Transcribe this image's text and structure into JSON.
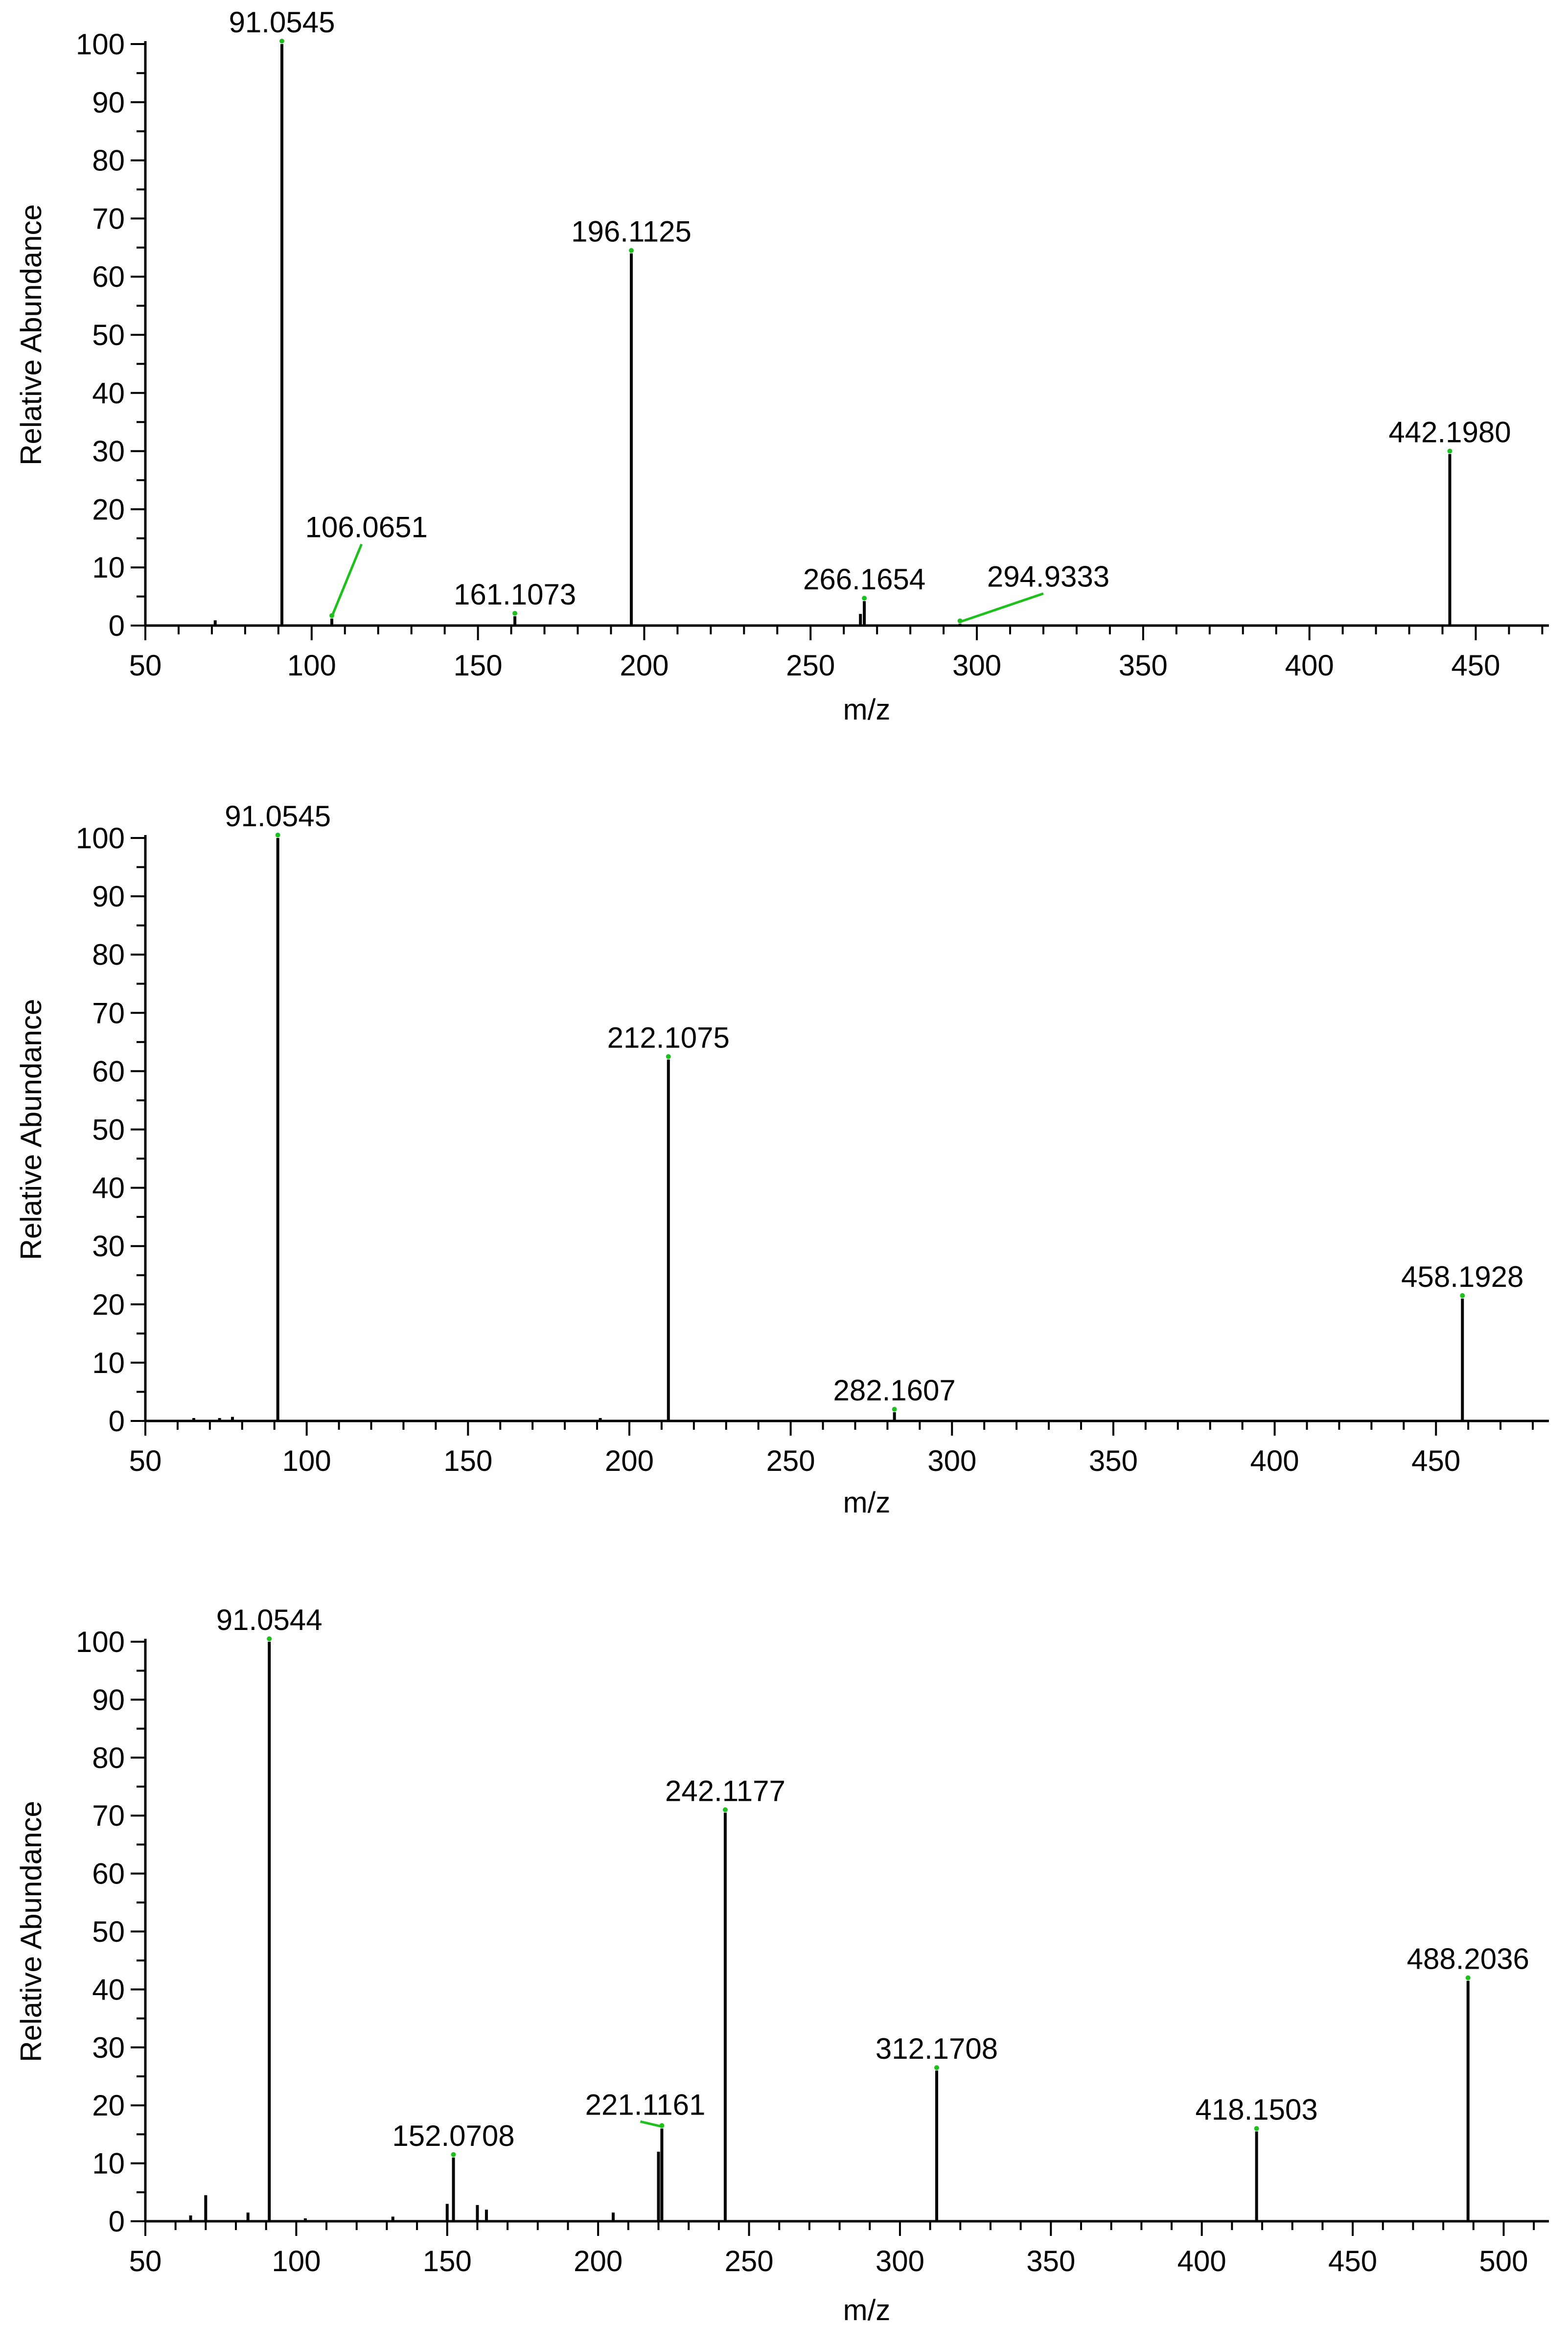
{
  "colors": {
    "peak": "#000000",
    "axis": "#000000",
    "annotation": "#1fbf1f",
    "background": "#ffffff"
  },
  "chart_data": [
    {
      "type": "bar",
      "xlabel": "m/z",
      "ylabel": "Relative Abundance",
      "xlim": [
        50,
        472
      ],
      "ylim": [
        0,
        100
      ],
      "xticks": [
        50,
        100,
        150,
        200,
        250,
        300,
        350,
        400,
        450
      ],
      "yticks": [
        0,
        10,
        20,
        30,
        40,
        50,
        60,
        70,
        80,
        90,
        100
      ],
      "peaks": [
        {
          "x": 71.0,
          "y": 0.9
        },
        {
          "x": 91.0545,
          "y": 100
        },
        {
          "x": 106.0651,
          "y": 1.2
        },
        {
          "x": 161.1073,
          "y": 1.6
        },
        {
          "x": 196.1125,
          "y": 64
        },
        {
          "x": 265.0,
          "y": 2.0
        },
        {
          "x": 266.1654,
          "y": 4.2
        },
        {
          "x": 294.9333,
          "y": 0.3
        },
        {
          "x": 442.198,
          "y": 29.5
        }
      ],
      "labels": [
        {
          "x": 91.0545,
          "y": 100,
          "text": "91.0545"
        },
        {
          "x": 106.0651,
          "y": 1.2,
          "text": "106.0651",
          "lx": 115,
          "ly": 14
        },
        {
          "x": 161.1073,
          "y": 1.6,
          "text": "161.1073"
        },
        {
          "x": 196.1125,
          "y": 64,
          "text": "196.1125"
        },
        {
          "x": 266.1654,
          "y": 4.2,
          "text": "266.1654"
        },
        {
          "x": 294.9333,
          "y": 0.3,
          "text": "294.9333",
          "lx": 320,
          "ly": 5.5
        },
        {
          "x": 442.198,
          "y": 29.5,
          "text": "442.1980"
        }
      ]
    },
    {
      "type": "bar",
      "xlabel": "m/z",
      "ylabel": "Relative Abundance",
      "xlim": [
        50,
        485
      ],
      "ylim": [
        0,
        100
      ],
      "xticks": [
        50,
        100,
        150,
        200,
        250,
        300,
        350,
        400,
        450
      ],
      "yticks": [
        0,
        10,
        20,
        30,
        40,
        50,
        60,
        70,
        80,
        90,
        100
      ],
      "peaks": [
        {
          "x": 65.0,
          "y": 0.5
        },
        {
          "x": 73.0,
          "y": 0.5
        },
        {
          "x": 77.0,
          "y": 0.7
        },
        {
          "x": 91.0545,
          "y": 100
        },
        {
          "x": 191.0,
          "y": 0.5
        },
        {
          "x": 212.1075,
          "y": 62
        },
        {
          "x": 282.1607,
          "y": 1.5
        },
        {
          "x": 458.1928,
          "y": 21
        }
      ],
      "labels": [
        {
          "x": 91.0545,
          "y": 100,
          "text": "91.0545"
        },
        {
          "x": 212.1075,
          "y": 62,
          "text": "212.1075"
        },
        {
          "x": 282.1607,
          "y": 1.5,
          "text": "282.1607"
        },
        {
          "x": 458.1928,
          "y": 21,
          "text": "458.1928"
        }
      ]
    },
    {
      "type": "bar",
      "xlabel": "m/z",
      "ylabel": "Relative Abundance",
      "xlim": [
        50,
        515
      ],
      "ylim": [
        0,
        100
      ],
      "xticks": [
        50,
        100,
        150,
        200,
        250,
        300,
        350,
        400,
        450,
        500
      ],
      "yticks": [
        0,
        10,
        20,
        30,
        40,
        50,
        60,
        70,
        80,
        90,
        100
      ],
      "peaks": [
        {
          "x": 65.0,
          "y": 1.0
        },
        {
          "x": 70.0,
          "y": 4.5
        },
        {
          "x": 84.0,
          "y": 1.5
        },
        {
          "x": 91.0544,
          "y": 100
        },
        {
          "x": 103.0,
          "y": 0.5
        },
        {
          "x": 132.0,
          "y": 0.8
        },
        {
          "x": 150.0,
          "y": 3.0
        },
        {
          "x": 152.0708,
          "y": 11
        },
        {
          "x": 160.0,
          "y": 2.8
        },
        {
          "x": 163.0,
          "y": 2.0
        },
        {
          "x": 205.0,
          "y": 1.5
        },
        {
          "x": 220.0,
          "y": 12
        },
        {
          "x": 221.1161,
          "y": 16
        },
        {
          "x": 242.1177,
          "y": 70.5
        },
        {
          "x": 312.1708,
          "y": 26
        },
        {
          "x": 418.1503,
          "y": 15.5
        },
        {
          "x": 488.2036,
          "y": 41.5
        }
      ],
      "labels": [
        {
          "x": 91.0544,
          "y": 100,
          "text": "91.0544"
        },
        {
          "x": 152.0708,
          "y": 11,
          "text": "152.0708"
        },
        {
          "x": 221.1161,
          "y": 16,
          "text": "221.1161",
          "lx": 214,
          "ly": 17.2
        },
        {
          "x": 242.1177,
          "y": 70.5,
          "text": "242.1177"
        },
        {
          "x": 312.1708,
          "y": 26,
          "text": "312.1708"
        },
        {
          "x": 418.1503,
          "y": 15.5,
          "text": "418.1503"
        },
        {
          "x": 488.2036,
          "y": 41.5,
          "text": "488.2036"
        }
      ]
    }
  ]
}
